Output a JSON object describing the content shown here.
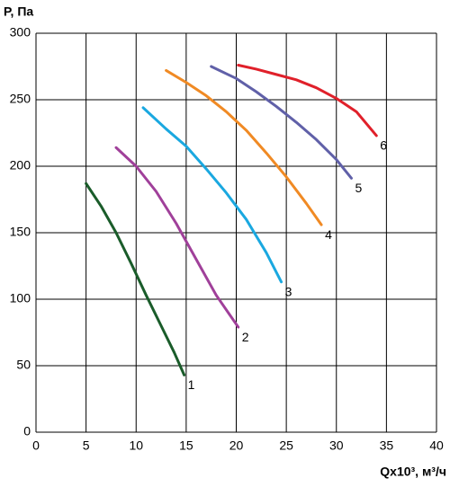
{
  "chart_data": {
    "type": "line",
    "y_label": "P, Па",
    "x_label": "Qx10³, м³/ч",
    "xlim": [
      0,
      40
    ],
    "xticks": [
      0,
      5,
      10,
      15,
      20,
      25,
      30,
      35,
      40
    ],
    "ylim": [
      0,
      300
    ],
    "yticks": [
      0,
      50,
      100,
      150,
      200,
      250,
      300
    ],
    "grid": true,
    "series": [
      {
        "name": "1",
        "color": "#1a5c2a",
        "x": [
          5,
          6.5,
          8,
          9.5,
          11,
          12.5,
          13.8,
          14.8
        ],
        "values": [
          187,
          170,
          150,
          127,
          103,
          80,
          60,
          43
        ]
      },
      {
        "name": "2",
        "color": "#a0409a",
        "x": [
          8,
          10,
          12,
          14,
          16,
          18,
          20.2
        ],
        "values": [
          214,
          200,
          181,
          157,
          130,
          103,
          79
        ]
      },
      {
        "name": "3",
        "color": "#1aa8e0",
        "x": [
          10.7,
          13,
          15,
          17,
          19,
          21,
          23,
          24.5
        ],
        "values": [
          244,
          228,
          215,
          198,
          180,
          160,
          135,
          113
        ]
      },
      {
        "name": "4",
        "color": "#f08a24",
        "x": [
          13,
          15,
          17,
          19,
          21,
          23,
          25,
          27,
          28.5
        ],
        "values": [
          272,
          263,
          253,
          241,
          227,
          210,
          192,
          172,
          156
        ]
      },
      {
        "name": "5",
        "color": "#6060a8",
        "x": [
          17.5,
          20,
          22,
          24,
          26,
          28,
          30,
          31.5
        ],
        "values": [
          275,
          266,
          256,
          245,
          233,
          220,
          205,
          191
        ]
      },
      {
        "name": "6",
        "color": "#e0202a",
        "x": [
          20.2,
          22,
          24,
          26,
          28,
          30,
          32,
          34
        ],
        "values": [
          276,
          273,
          269,
          265,
          259,
          251,
          241,
          223
        ]
      }
    ]
  }
}
